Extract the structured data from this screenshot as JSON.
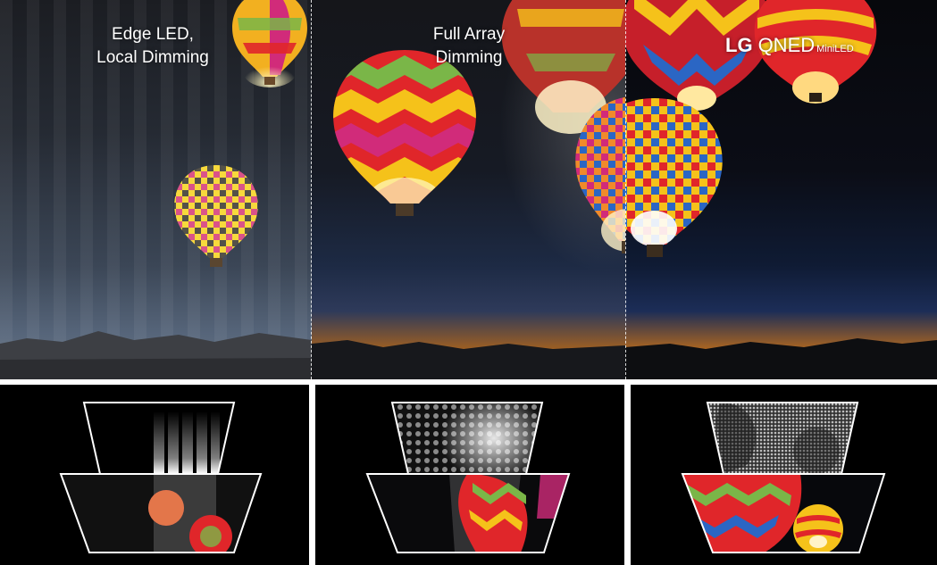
{
  "captions": {
    "edge": "Edge LED,\nLocal Dimming",
    "edge_line1": "Edge LED,",
    "edge_line2": "Local Dimming",
    "full_line1": "Full Array",
    "full_line2": "Dimming"
  },
  "brand": {
    "lg": "LG",
    "qned": "QNED",
    "mini": "MiniLED"
  },
  "colors": {
    "balloon_red": "#e0262a",
    "balloon_yellow": "#f5c21a",
    "balloon_green": "#7ab648",
    "balloon_magenta": "#d12b7a",
    "sunset_orange": "#d98a2a"
  },
  "diagrams": [
    {
      "type": "edge-lit",
      "light_pattern": "light-bars"
    },
    {
      "type": "full-array",
      "light_pattern": "dot-grid"
    },
    {
      "type": "mini-led",
      "light_pattern": "fine-grid"
    }
  ]
}
